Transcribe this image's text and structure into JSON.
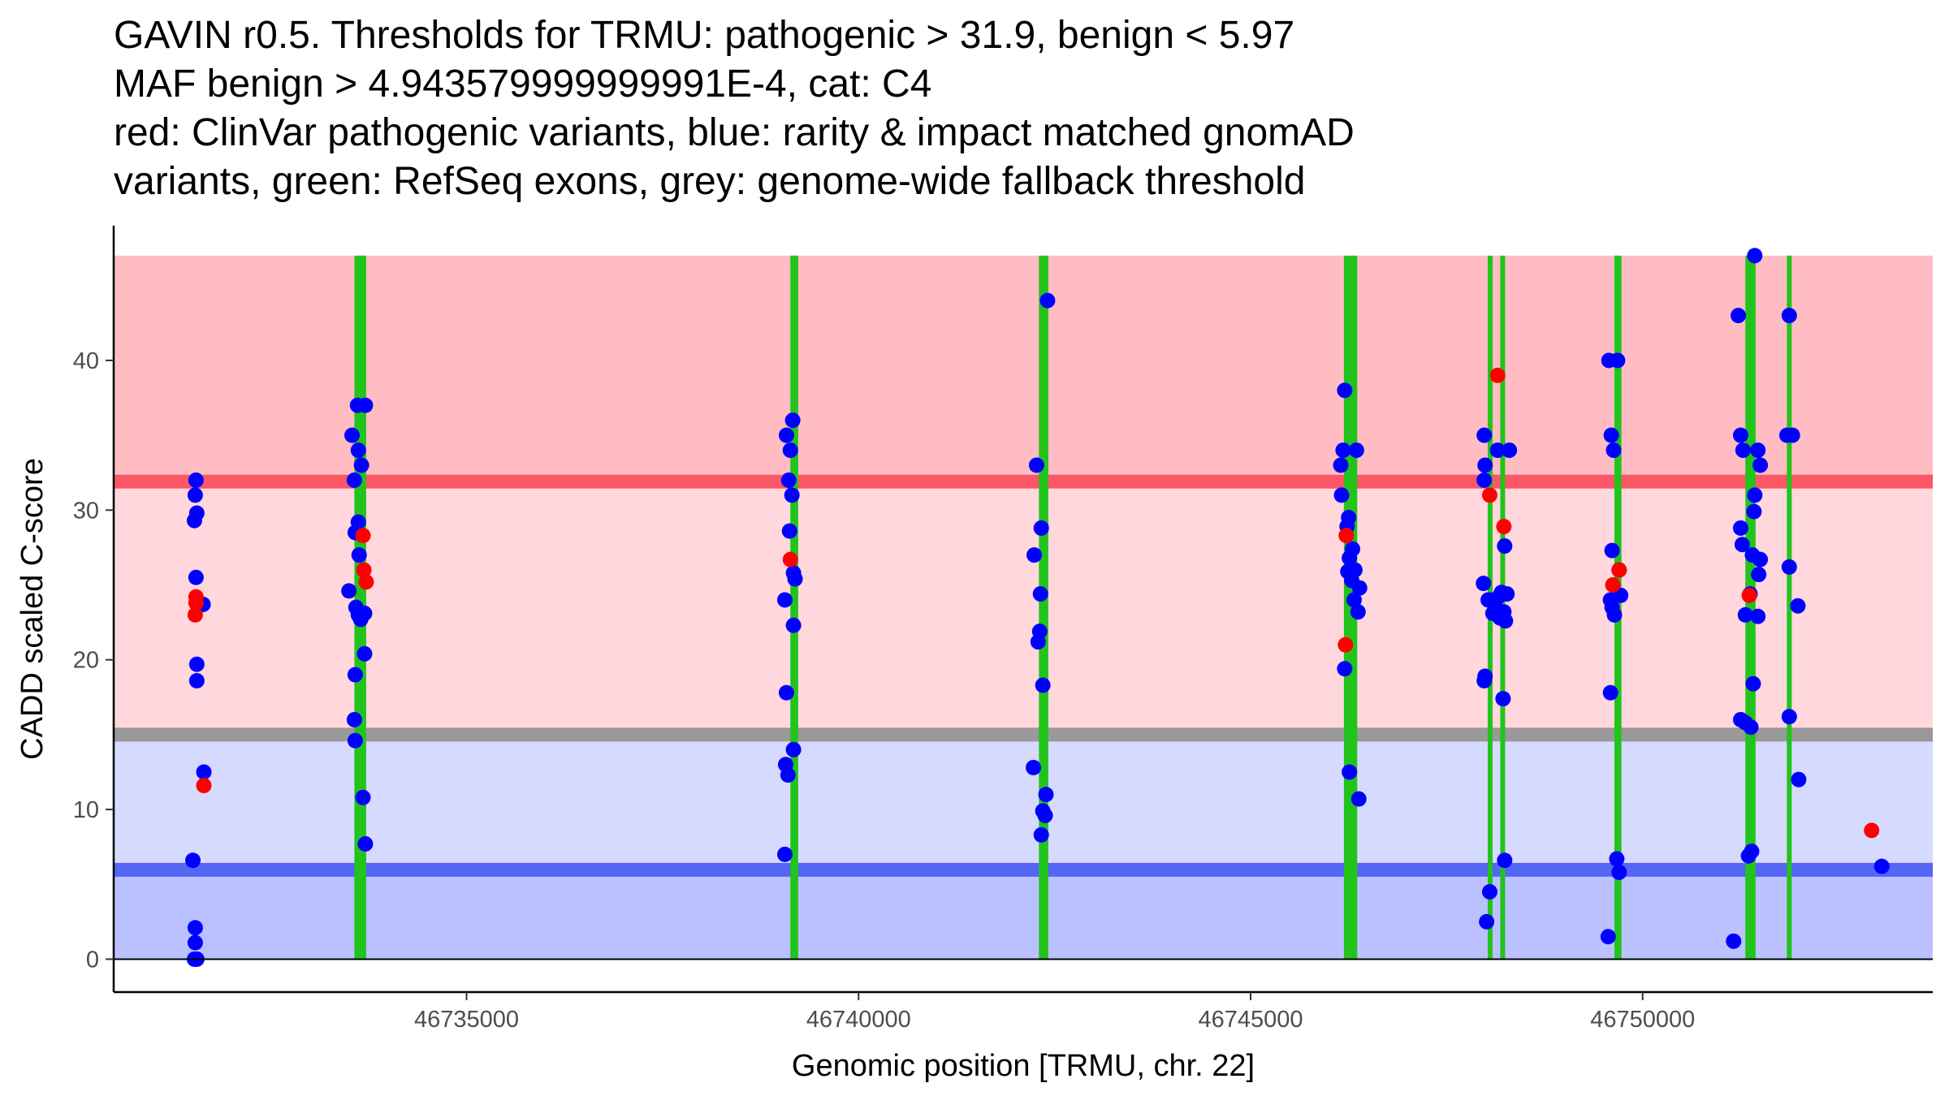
{
  "chart_data": {
    "type": "scatter",
    "title_lines": [
      "GAVIN r0.5. Thresholds for TRMU: pathogenic > 31.9, benign < 5.97",
      "MAF benign > 4.943579999999991E-4, cat: C4",
      "red: ClinVar pathogenic variants, blue: rarity & impact matched gnomAD",
      "variants, green: RefSeq exons, grey: genome-wide fallback threshold"
    ],
    "xlabel": "Genomic position [TRMU, chr. 22]",
    "ylabel": "CADD scaled C-score",
    "xlim": [
      46730500,
      46753700
    ],
    "ylim": [
      -2.2,
      49
    ],
    "x_ticks": [
      46735000,
      46740000,
      46745000,
      46750000
    ],
    "x_tick_labels": [
      "46735000",
      "46740000",
      "46745000",
      "46750000"
    ],
    "y_ticks": [
      0,
      10,
      20,
      30,
      40
    ],
    "y_tick_labels": [
      "0",
      "10",
      "20",
      "30",
      "40"
    ],
    "colors": {
      "pathogenic_region": "#ffbcc2",
      "intermediate_pathogenic": "#ffd7dc",
      "intermediate_benign": "#d7daff",
      "benign_region": "#bbc1ff",
      "pathogenic_line": "#fb5766",
      "benign_line": "#5565f5",
      "fallback_line": "#999999",
      "exon": "#22c41c",
      "pathogenic_point": "#ff0000",
      "benign_point": "#0000ff"
    },
    "regions": [
      {
        "name": "pathogenic",
        "y0": 31.9,
        "y1": 47
      },
      {
        "name": "intermediate-pathogenic",
        "y0": 15.0,
        "y1": 31.9
      },
      {
        "name": "intermediate-benign",
        "y0": 5.97,
        "y1": 15.0
      },
      {
        "name": "benign",
        "y0": 0,
        "y1": 5.97
      }
    ],
    "threshold_lines": [
      {
        "name": "pathogenic-threshold",
        "y": 31.9
      },
      {
        "name": "fallback-threshold",
        "y": 15.0
      },
      {
        "name": "benign-threshold",
        "y": 5.97
      }
    ],
    "exons": [
      {
        "start": 46733570,
        "end": 46733720
      },
      {
        "start": 46739130,
        "end": 46739230
      },
      {
        "start": 46742300,
        "end": 46742420
      },
      {
        "start": 46746190,
        "end": 46746360
      },
      {
        "start": 46748030,
        "end": 46748080
      },
      {
        "start": 46748190,
        "end": 46748240
      },
      {
        "start": 46749640,
        "end": 46749730
      },
      {
        "start": 46751310,
        "end": 46751440
      },
      {
        "start": 46751840,
        "end": 46751900
      }
    ],
    "series": [
      {
        "name": "gnomAD",
        "color": "#0000ff",
        "points": [
          [
            46731550,
            32
          ],
          [
            46731540,
            31
          ],
          [
            46731560,
            29.8
          ],
          [
            46731530,
            29.3
          ],
          [
            46731550,
            25.5
          ],
          [
            46731640,
            23.7
          ],
          [
            46731560,
            19.7
          ],
          [
            46731560,
            18.6
          ],
          [
            46731650,
            12.5
          ],
          [
            46731510,
            6.6
          ],
          [
            46731540,
            2.1
          ],
          [
            46731540,
            1.1
          ],
          [
            46731530,
            0
          ],
          [
            46731560,
            0
          ],
          [
            46733540,
            35
          ],
          [
            46733570,
            32
          ],
          [
            46733610,
            37
          ],
          [
            46733710,
            37
          ],
          [
            46733620,
            34
          ],
          [
            46733660,
            33
          ],
          [
            46733620,
            29.2
          ],
          [
            46733580,
            28.5
          ],
          [
            46733630,
            27
          ],
          [
            46733500,
            24.6
          ],
          [
            46733590,
            23.5
          ],
          [
            46733620,
            23
          ],
          [
            46733700,
            23.1
          ],
          [
            46733650,
            22.7
          ],
          [
            46733700,
            20.4
          ],
          [
            46733580,
            19
          ],
          [
            46733570,
            16
          ],
          [
            46733580,
            14.6
          ],
          [
            46733680,
            10.8
          ],
          [
            46733710,
            7.7
          ],
          [
            46739080,
            35
          ],
          [
            46739160,
            36
          ],
          [
            46739130,
            34
          ],
          [
            46739110,
            32
          ],
          [
            46739150,
            31
          ],
          [
            46739120,
            28.6
          ],
          [
            46739170,
            25.8
          ],
          [
            46739190,
            25.4
          ],
          [
            46739170,
            22.3
          ],
          [
            46739060,
            24
          ],
          [
            46739080,
            17.8
          ],
          [
            46739070,
            13
          ],
          [
            46739170,
            14
          ],
          [
            46739100,
            12.3
          ],
          [
            46739060,
            7
          ],
          [
            46742270,
            33
          ],
          [
            46742410,
            44
          ],
          [
            46742330,
            28.8
          ],
          [
            46742240,
            27
          ],
          [
            46742320,
            24.4
          ],
          [
            46742310,
            21.9
          ],
          [
            46742290,
            21.2
          ],
          [
            46742350,
            18.3
          ],
          [
            46742230,
            12.8
          ],
          [
            46742390,
            11
          ],
          [
            46742350,
            9.9
          ],
          [
            46742380,
            9.6
          ],
          [
            46742330,
            8.3
          ],
          [
            46746150,
            33
          ],
          [
            46746200,
            38
          ],
          [
            46746180,
            34
          ],
          [
            46746350,
            34
          ],
          [
            46746160,
            31
          ],
          [
            46746250,
            29.5
          ],
          [
            46746230,
            28.9
          ],
          [
            46746300,
            27.4
          ],
          [
            46746260,
            26.8
          ],
          [
            46746240,
            25.9
          ],
          [
            46746330,
            26
          ],
          [
            46746290,
            25.3
          ],
          [
            46746390,
            24.8
          ],
          [
            46746320,
            24
          ],
          [
            46746370,
            23.2
          ],
          [
            46746200,
            19.4
          ],
          [
            46746260,
            12.5
          ],
          [
            46746380,
            10.7
          ],
          [
            46747980,
            35
          ],
          [
            46747990,
            33
          ],
          [
            46748150,
            34
          ],
          [
            46748300,
            34
          ],
          [
            46747980,
            32
          ],
          [
            46748240,
            27.6
          ],
          [
            46747970,
            25.1
          ],
          [
            46748030,
            24
          ],
          [
            46748200,
            24.5
          ],
          [
            46748090,
            24
          ],
          [
            46748180,
            24.3
          ],
          [
            46748270,
            24.4
          ],
          [
            46748120,
            23.9
          ],
          [
            46748090,
            23.1
          ],
          [
            46748230,
            23.2
          ],
          [
            46748180,
            22.8
          ],
          [
            46748250,
            22.6
          ],
          [
            46747990,
            18.9
          ],
          [
            46747980,
            18.6
          ],
          [
            46748220,
            17.4
          ],
          [
            46748240,
            6.6
          ],
          [
            46748050,
            4.5
          ],
          [
            46748010,
            2.5
          ],
          [
            46749570,
            40
          ],
          [
            46749680,
            40
          ],
          [
            46749600,
            35
          ],
          [
            46749630,
            34
          ],
          [
            46749610,
            27.3
          ],
          [
            46749700,
            26
          ],
          [
            46749720,
            24.3
          ],
          [
            46749590,
            24
          ],
          [
            46749610,
            23.5
          ],
          [
            46749640,
            23
          ],
          [
            46749590,
            17.8
          ],
          [
            46749670,
            6.7
          ],
          [
            46749700,
            5.8
          ],
          [
            46749560,
            1.5
          ],
          [
            46751220,
            43
          ],
          [
            46751430,
            47
          ],
          [
            46751250,
            35
          ],
          [
            46751280,
            34
          ],
          [
            46751470,
            34
          ],
          [
            46751500,
            33
          ],
          [
            46751430,
            31
          ],
          [
            46751250,
            28.8
          ],
          [
            46751270,
            27.7
          ],
          [
            46751400,
            27
          ],
          [
            46751500,
            26.7
          ],
          [
            46751480,
            25.7
          ],
          [
            46751370,
            24.4
          ],
          [
            46751310,
            23
          ],
          [
            46751470,
            22.9
          ],
          [
            46751420,
            29.9
          ],
          [
            46751410,
            18.4
          ],
          [
            46751250,
            16
          ],
          [
            46751310,
            15.8
          ],
          [
            46751380,
            15.5
          ],
          [
            46751390,
            7.2
          ],
          [
            46751350,
            6.9
          ],
          [
            46751160,
            1.2
          ],
          [
            46751840,
            35
          ],
          [
            46751910,
            35
          ],
          [
            46751870,
            43
          ],
          [
            46751870,
            26.2
          ],
          [
            46751980,
            23.6
          ],
          [
            46751870,
            16.2
          ],
          [
            46751990,
            12
          ],
          [
            46753050,
            6.2
          ]
        ]
      },
      {
        "name": "ClinVar pathogenic",
        "color": "#ff0000",
        "points": [
          [
            46731550,
            24.2
          ],
          [
            46731550,
            23.8
          ],
          [
            46731540,
            23
          ],
          [
            46731650,
            11.6
          ],
          [
            46733680,
            28.3
          ],
          [
            46733690,
            26
          ],
          [
            46733720,
            25.2
          ],
          [
            46739130,
            26.7
          ],
          [
            46746220,
            28.3
          ],
          [
            46746210,
            21
          ],
          [
            46748050,
            31
          ],
          [
            46748150,
            39
          ],
          [
            46748230,
            28.9
          ],
          [
            46749700,
            26
          ],
          [
            46749620,
            25
          ],
          [
            46751360,
            24.3
          ],
          [
            46752920,
            8.6
          ]
        ]
      }
    ]
  }
}
